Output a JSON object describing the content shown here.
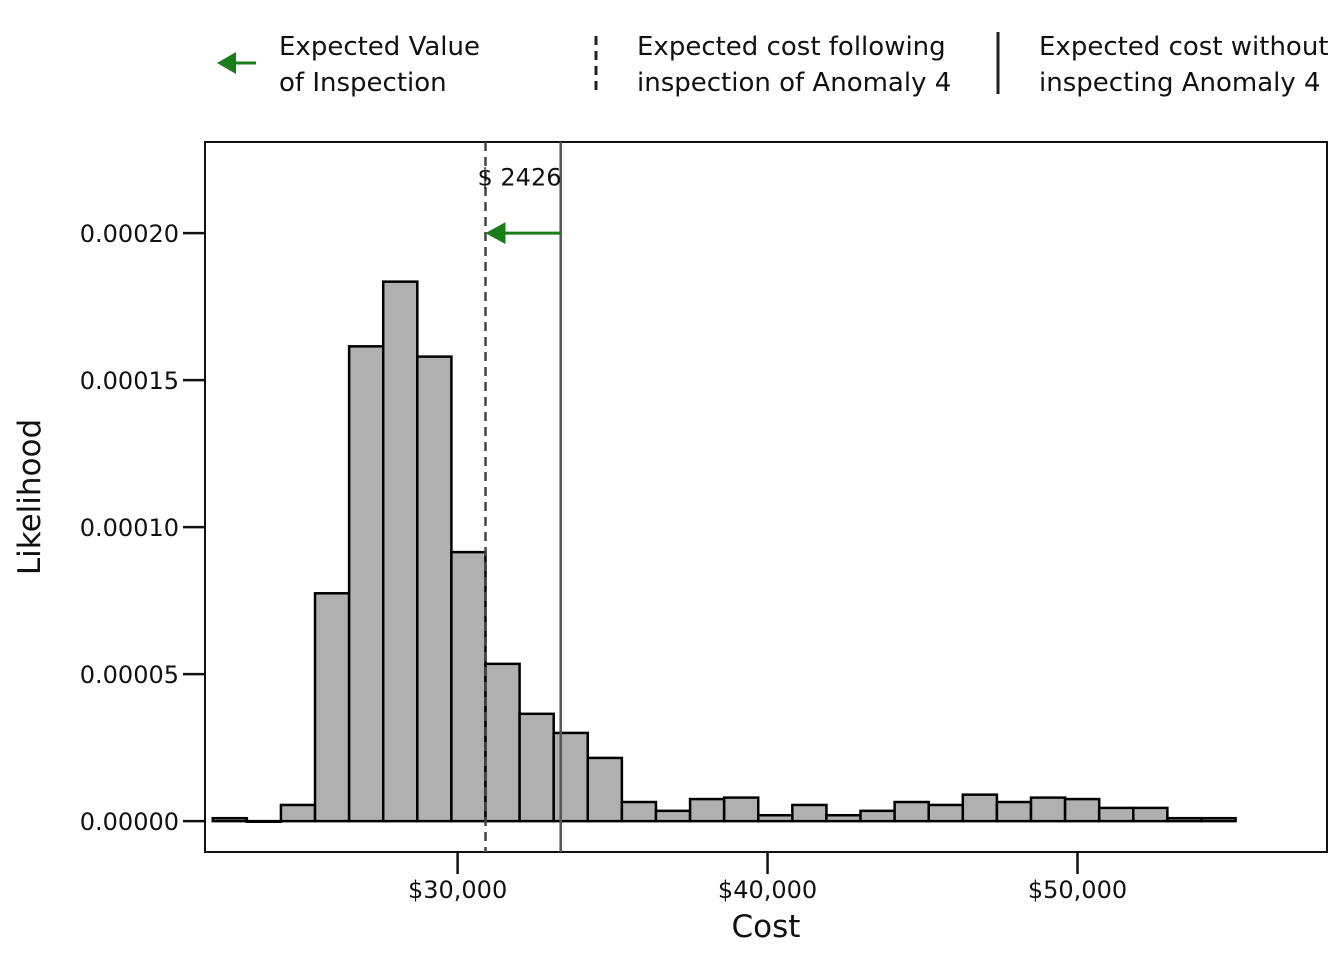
{
  "chart_data": {
    "type": "bar",
    "title": "",
    "xlabel": "Cost",
    "ylabel": "Likelihood",
    "xlim": [
      21850,
      58050
    ],
    "ylim": [
      -1.05e-05,
      0.000231
    ],
    "x_ticks": [
      30000,
      40000,
      50000
    ],
    "x_tick_labels": [
      "$30,000",
      "$40,000",
      "$50,000"
    ],
    "y_ticks": [
      0,
      5e-05,
      0.0001,
      0.00015,
      0.0002
    ],
    "y_tick_labels": [
      "0.00000",
      "0.00005",
      "0.00010",
      "0.00015",
      "0.00020"
    ],
    "grid": false,
    "bin_edges": [
      22100,
      23200,
      24300,
      25400,
      26500,
      27600,
      28700,
      29800,
      30900,
      32000,
      33100,
      34200,
      35300,
      36400,
      37500,
      38600,
      39700,
      40800,
      41900,
      43000,
      44100,
      45200,
      46300,
      47400,
      48500,
      49600,
      50700,
      51800,
      52900,
      54000,
      55100
    ],
    "values": [
      1e-06,
      0.0,
      5.5e-06,
      7.75e-05,
      0.0001615,
      0.0001835,
      0.000158,
      9.15e-05,
      5.35e-05,
      3.65e-05,
      3e-05,
      2.15e-05,
      6.5e-06,
      3.5e-06,
      7.5e-06,
      8e-06,
      2e-06,
      5.5e-06,
      2e-06,
      3.5e-06,
      6.5e-06,
      5.5e-06,
      9e-06,
      6.5e-06,
      8e-06,
      7.5e-06,
      4.5e-06,
      4.5e-06,
      1e-06,
      1e-06
    ],
    "bar_color": "#b0b0b0",
    "edge_color": "#000000",
    "lines": [
      {
        "name": "Expected cost following inspection of Anomaly 4",
        "x": 30900,
        "style": "dashed",
        "color": "#444444"
      },
      {
        "name": "Expected cost without inspecting Anomaly 4",
        "x": 33326,
        "style": "solid",
        "color": "#555555"
      }
    ],
    "arrow": {
      "x_from": 33326,
      "x_to": 30900,
      "y": 0.0002,
      "color": "#1a7d1a"
    },
    "annotation": {
      "text": "$ 2426",
      "x": 30900,
      "y": 0.000219
    },
    "legend": {
      "placement": "top",
      "entries": [
        {
          "lines": [
            "Expected Value",
            "of Inspection"
          ],
          "marker": "arrow",
          "color": "#1a7d1a"
        },
        {
          "lines": [
            "Expected cost following",
            "inspection of Anomaly 4"
          ],
          "marker": "dashed-line",
          "color": "#222222"
        },
        {
          "lines": [
            "Expected cost without",
            "inspecting Anomaly 4"
          ],
          "marker": "solid-line",
          "color": "#222222"
        }
      ]
    }
  }
}
